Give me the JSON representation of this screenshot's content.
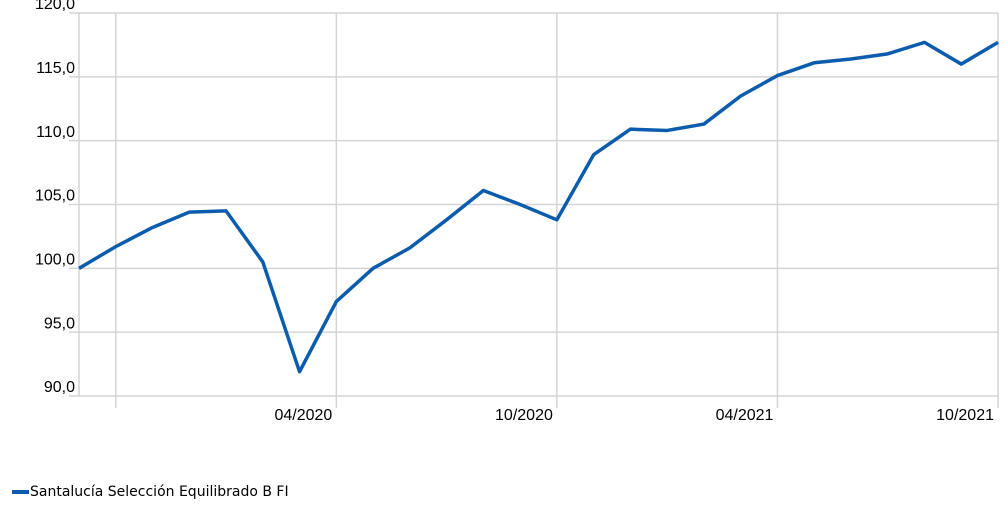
{
  "chart_data": {
    "type": "line",
    "categories": [
      null,
      null,
      null,
      null,
      null,
      null,
      null,
      "04/2020",
      null,
      null,
      null,
      null,
      null,
      "10/2020",
      null,
      null,
      null,
      null,
      null,
      "04/2021",
      null,
      null,
      null,
      null,
      null,
      "10/2021"
    ],
    "series": [
      {
        "name": "Santalucía Selección Equilibrado B FI",
        "color": "#0b5cad",
        "values": [
          100.0,
          101.7,
          103.2,
          104.4,
          104.5,
          100.5,
          91.9,
          97.4,
          100.0,
          101.6,
          103.8,
          106.1,
          105.0,
          103.8,
          108.9,
          110.9,
          110.8,
          111.3,
          113.5,
          115.1,
          116.1,
          116.4,
          116.8,
          117.7,
          116.0,
          117.7
        ]
      }
    ],
    "ylim": [
      90,
      120
    ],
    "yticks": [
      {
        "value": 90,
        "label": "90,0"
      },
      {
        "value": 95,
        "label": "95,0"
      },
      {
        "value": 100,
        "label": "100,0"
      },
      {
        "value": 105,
        "label": "105,0"
      },
      {
        "value": 110,
        "label": "110,0"
      },
      {
        "value": 115,
        "label": "115,0"
      },
      {
        "value": 120,
        "label": "120,0"
      }
    ],
    "grid": true,
    "legend": "bottom-left"
  }
}
